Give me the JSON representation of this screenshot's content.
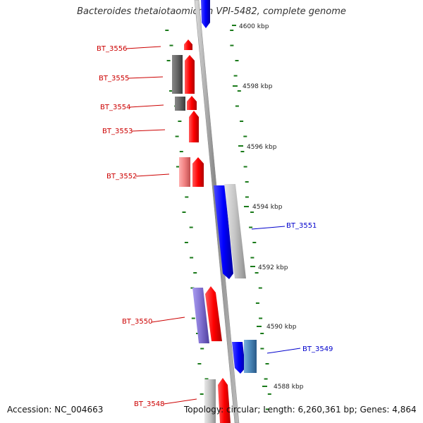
{
  "title": "Bacteroides thetaiotaomicron VPI-5482, complete genome",
  "accession": "Accession: NC_004663",
  "topology": "Topology: circular; Length: 6,260,361 bp; Genes: 4,864",
  "ticks": [
    "4600 kbp",
    "4598 kbp",
    "4596 kbp",
    "4594 kbp",
    "4592 kbp",
    "4590 kbp",
    "4588 kbp"
  ],
  "genes": [
    {
      "label": "BT_3556",
      "strand": "forward"
    },
    {
      "label": "BT_3555",
      "strand": "forward"
    },
    {
      "label": "BT_3554",
      "strand": "forward"
    },
    {
      "label": "BT_3553",
      "strand": "forward"
    },
    {
      "label": "BT_3552",
      "strand": "forward"
    },
    {
      "label": "BT_3551",
      "strand": "reverse"
    },
    {
      "label": "BT_3550",
      "strand": "forward"
    },
    {
      "label": "BT_3549",
      "strand": "reverse"
    },
    {
      "label": "BT_3548",
      "strand": "forward"
    }
  ],
  "colors": {
    "forward_gene": "#ee0000",
    "reverse_gene": "#0000ee",
    "forward_label": "#cc0000",
    "reverse_label": "#0000cc",
    "backbone": "#999999",
    "tick_mark": "#1a7a1a",
    "gc_gray": "#666666",
    "light_gray": "#c0c0c0",
    "pink": "#f08080",
    "purple": "#8a7ad6",
    "steel_blue": "#4a86b8"
  }
}
